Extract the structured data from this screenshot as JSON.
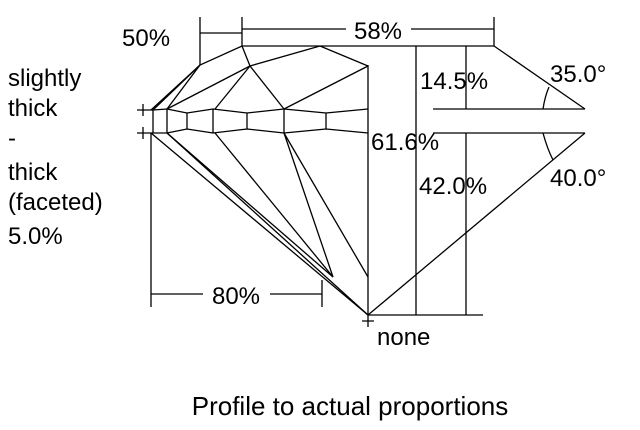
{
  "labels": {
    "lower_half_length": "50%",
    "table": "58%",
    "girdle": [
      "slightly",
      "thick",
      "-",
      "thick",
      "(faceted)",
      "5.0%"
    ],
    "crown_height": "14.5%",
    "crown_angle": "35.0°",
    "total_depth": "61.6%",
    "pavilion_depth": "42.0%",
    "pavilion_angle": "40.0°",
    "star_length": "80%",
    "culet": "none"
  },
  "caption": "Profile to actual proportions",
  "colors": {
    "line": "#000000",
    "background": "#ffffff"
  }
}
